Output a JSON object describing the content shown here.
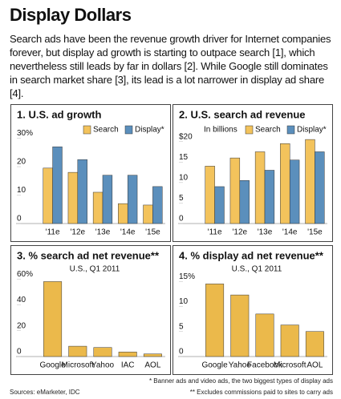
{
  "header": {
    "title": "Display Dollars",
    "intro": "Search ads have been the revenue growth driver for Internet companies forever, but display ad growth is starting to outpace search [1], which nevertheless still leads by far in dollars [2]. While Google still dominates in search market share [3], its lead is a lot narrower in display ad share [4]."
  },
  "chart_data": [
    {
      "type": "bar",
      "title": "1. U.S. ad growth",
      "categories": [
        "'11e",
        "'12e",
        "'13e",
        "'14e",
        "'15e"
      ],
      "series": [
        {
          "name": "Search",
          "color": "#f3c35c",
          "values": [
            19.5,
            18,
            11,
            7,
            6.5
          ]
        },
        {
          "name": "Display*",
          "color": "#5b8fbc",
          "values": [
            27,
            22.5,
            17,
            17,
            13
          ]
        }
      ],
      "ylim": [
        0,
        31
      ],
      "yticks": [
        0,
        10,
        20,
        {
          "value": 30,
          "label": "30%"
        }
      ],
      "legend": "top-right"
    },
    {
      "type": "bar",
      "title": "2. U.S. search ad revenue",
      "subtitle": "In billions",
      "categories": [
        "'11e",
        "'12e",
        "'13e",
        "'14e",
        "'15e"
      ],
      "series": [
        {
          "name": "Search",
          "color": "#f3c35c",
          "values": [
            14,
            16,
            17.5,
            19.5,
            20.5
          ]
        },
        {
          "name": "Display*",
          "color": "#5b8fbc",
          "values": [
            9,
            10.5,
            13,
            15.5,
            17.5
          ]
        }
      ],
      "ylim": [
        0,
        21.5
      ],
      "yticks": [
        0,
        5,
        10,
        15,
        {
          "value": 20,
          "label": "$20"
        }
      ],
      "legend": "top-right"
    },
    {
      "type": "bar",
      "title": "3. % search ad net revenue**",
      "subtitle": "U.S., Q1 2011",
      "categories": [
        "Google",
        "Microsoft",
        "Yahoo",
        "IAC",
        "AOL"
      ],
      "values": [
        58,
        8,
        7,
        3.5,
        2
      ],
      "color": "#ebb94b",
      "ylim": [
        0,
        62
      ],
      "yticks": [
        0,
        20,
        40,
        {
          "value": 60,
          "label": "60%"
        }
      ]
    },
    {
      "type": "bar",
      "title": "4. % display ad net revenue**",
      "subtitle": "U.S., Q1 2011",
      "categories": [
        "Google",
        "Yahoo",
        "Facebook",
        "Microsoft",
        "AOL"
      ],
      "values": [
        14.5,
        12.3,
        8.5,
        6.3,
        5
      ],
      "color": "#ebb94b",
      "ylim": [
        0,
        16
      ],
      "yticks": [
        0,
        5,
        10,
        {
          "value": 15,
          "label": "15%"
        }
      ]
    }
  ],
  "footnotes": [
    "* Banner ads and video ads, the two biggest types of display ads",
    "** Excludes commissions paid to sites to carry ads"
  ],
  "source": "Sources: eMarketer, IDC"
}
